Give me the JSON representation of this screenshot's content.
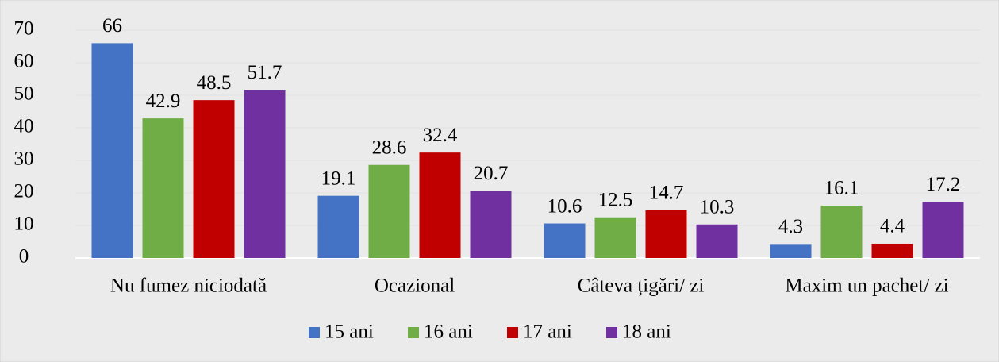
{
  "chart_data": {
    "type": "bar",
    "categories": [
      "Nu fumez niciodată",
      "Ocazional",
      "Câteva țigări/ zi",
      "Maxim un pachet/ zi"
    ],
    "series": [
      {
        "name": "15 ani",
        "color": "#4472c4",
        "values": [
          66,
          19.1,
          10.6,
          4.3
        ]
      },
      {
        "name": "16 ani",
        "color": "#70ad47",
        "values": [
          42.9,
          28.6,
          12.5,
          16.1
        ]
      },
      {
        "name": "17 ani",
        "color": "#c00000",
        "values": [
          48.5,
          32.4,
          14.7,
          4.4
        ]
      },
      {
        "name": "18 ani",
        "color": "#7030a0",
        "values": [
          51.7,
          20.7,
          10.3,
          17.2
        ]
      }
    ],
    "ylim": [
      0,
      70
    ],
    "yticks": [
      0,
      10,
      20,
      30,
      40,
      50,
      60,
      70
    ],
    "grid": true,
    "legend": "bottom"
  }
}
